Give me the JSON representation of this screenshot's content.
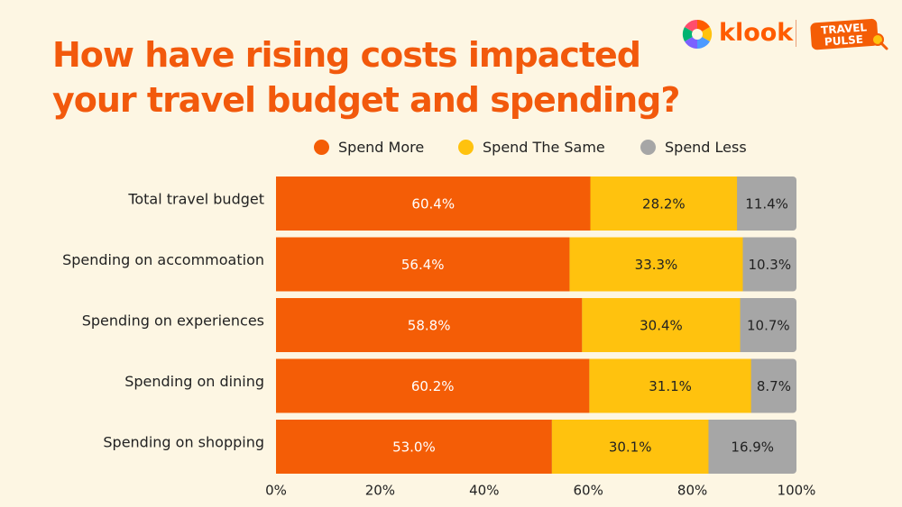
{
  "header": {
    "title_line1": "How have rising costs impacted",
    "title_line2": "your travel budget and spending?",
    "brand_name": "klook",
    "partner_logo_text": "TRAVEL PULSE"
  },
  "colors": {
    "spend_more": "#F45D06",
    "spend_same": "#FFC20E",
    "spend_less": "#A6A6A6",
    "title": "#F2590C",
    "background": "#FDF6E3"
  },
  "chart_data": {
    "type": "bar",
    "orientation": "horizontal",
    "stacked": true,
    "categories": [
      "Total travel budget",
      "Spending on accommoation",
      "Spending on experiences",
      "Spending on dining",
      "Spending on shopping"
    ],
    "series": [
      {
        "name": "Spend More",
        "values": [
          60.4,
          56.4,
          58.8,
          60.2,
          53.0
        ],
        "labels": [
          "60.4%",
          "56.4%",
          "58.8%",
          "60.2%",
          "53.0%"
        ]
      },
      {
        "name": "Spend The Same",
        "values": [
          28.2,
          33.3,
          30.4,
          31.1,
          30.1
        ],
        "labels": [
          "28.2%",
          "33.3%",
          "30.4%",
          "31.1%",
          "30.1%"
        ]
      },
      {
        "name": "Spend Less",
        "values": [
          11.4,
          10.3,
          10.7,
          8.7,
          16.9
        ],
        "labels": [
          "11.4%",
          "10.3%",
          "10.7%",
          "8.7%",
          "16.9%"
        ]
      }
    ],
    "xlim": [
      0,
      100
    ],
    "xticks": [
      "0%",
      "20%",
      "40%",
      "60%",
      "80%",
      "100%"
    ],
    "grid": false,
    "legend_position": "top"
  }
}
